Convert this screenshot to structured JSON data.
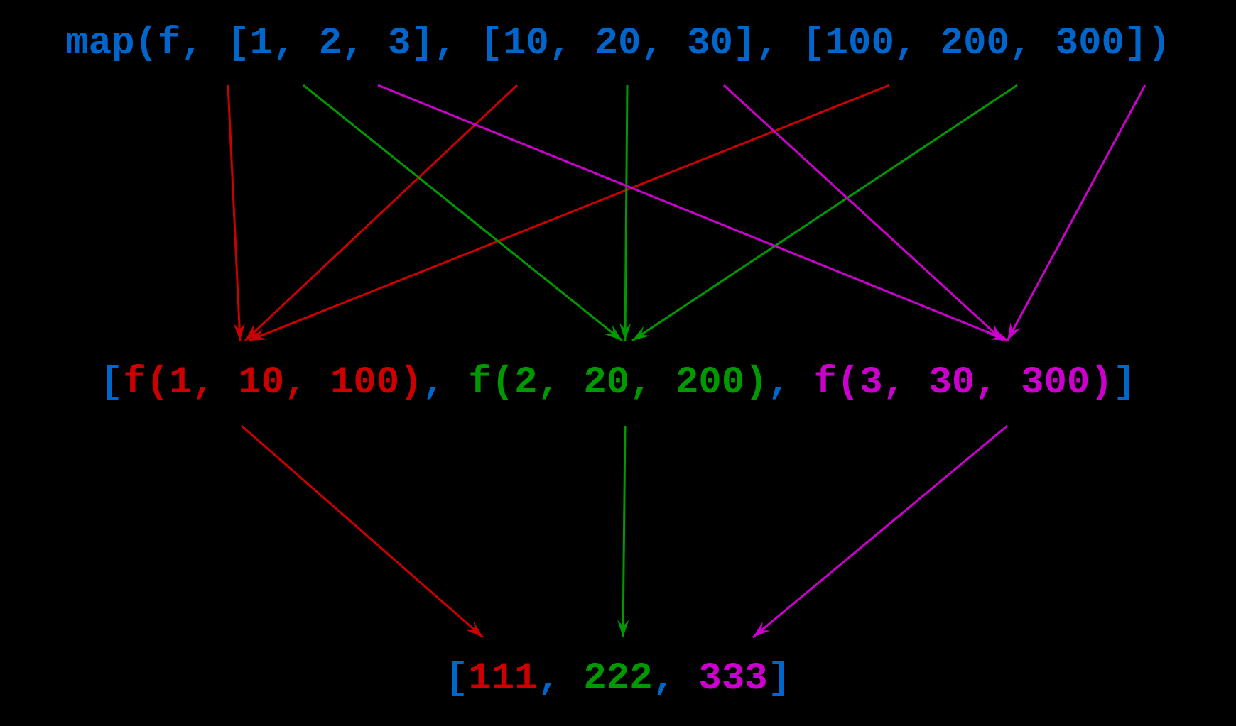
{
  "colors": {
    "background": "#000000",
    "syntax_blue": "#0066cc",
    "red": "#cc0000",
    "green": "#009900",
    "magenta": "#cc00cc"
  },
  "top_expression": [
    {
      "text": "map(f, [1, 2, 3], [10, 20, 30], [100, 200, 300])",
      "color": "syntax_blue"
    }
  ],
  "middle_expression": [
    {
      "text": "[",
      "color": "syntax_blue"
    },
    {
      "text": "f(1, 10, 100)",
      "color": "red"
    },
    {
      "text": ", ",
      "color": "syntax_blue"
    },
    {
      "text": "f(2, 20, 200)",
      "color": "green"
    },
    {
      "text": ", ",
      "color": "syntax_blue"
    },
    {
      "text": "f(3, 30, 300)",
      "color": "magenta"
    },
    {
      "text": "]",
      "color": "syntax_blue"
    }
  ],
  "result_expression": [
    {
      "text": "[",
      "color": "syntax_blue"
    },
    {
      "text": "111",
      "color": "red"
    },
    {
      "text": ", ",
      "color": "syntax_blue"
    },
    {
      "text": "222",
      "color": "green"
    },
    {
      "text": ", ",
      "color": "syntax_blue"
    },
    {
      "text": "333",
      "color": "magenta"
    },
    {
      "text": "]",
      "color": "syntax_blue"
    }
  ],
  "connections": [
    {
      "from": "1",
      "to": "f(1, 10, 100)",
      "color": "red"
    },
    {
      "from": "10",
      "to": "f(1, 10, 100)",
      "color": "red"
    },
    {
      "from": "100",
      "to": "f(1, 10, 100)",
      "color": "red"
    },
    {
      "from": "2",
      "to": "f(2, 20, 200)",
      "color": "green"
    },
    {
      "from": "20",
      "to": "f(2, 20, 200)",
      "color": "green"
    },
    {
      "from": "200",
      "to": "f(2, 20, 200)",
      "color": "green"
    },
    {
      "from": "3",
      "to": "f(3, 30, 300)",
      "color": "magenta"
    },
    {
      "from": "30",
      "to": "f(3, 30, 300)",
      "color": "magenta"
    },
    {
      "from": "300",
      "to": "f(3, 30, 300)",
      "color": "magenta"
    },
    {
      "from": "f(1, 10, 100)",
      "to": "111",
      "color": "red"
    },
    {
      "from": "f(2, 20, 200)",
      "to": "222",
      "color": "green"
    },
    {
      "from": "f(3, 30, 300)",
      "to": "333",
      "color": "magenta"
    }
  ]
}
